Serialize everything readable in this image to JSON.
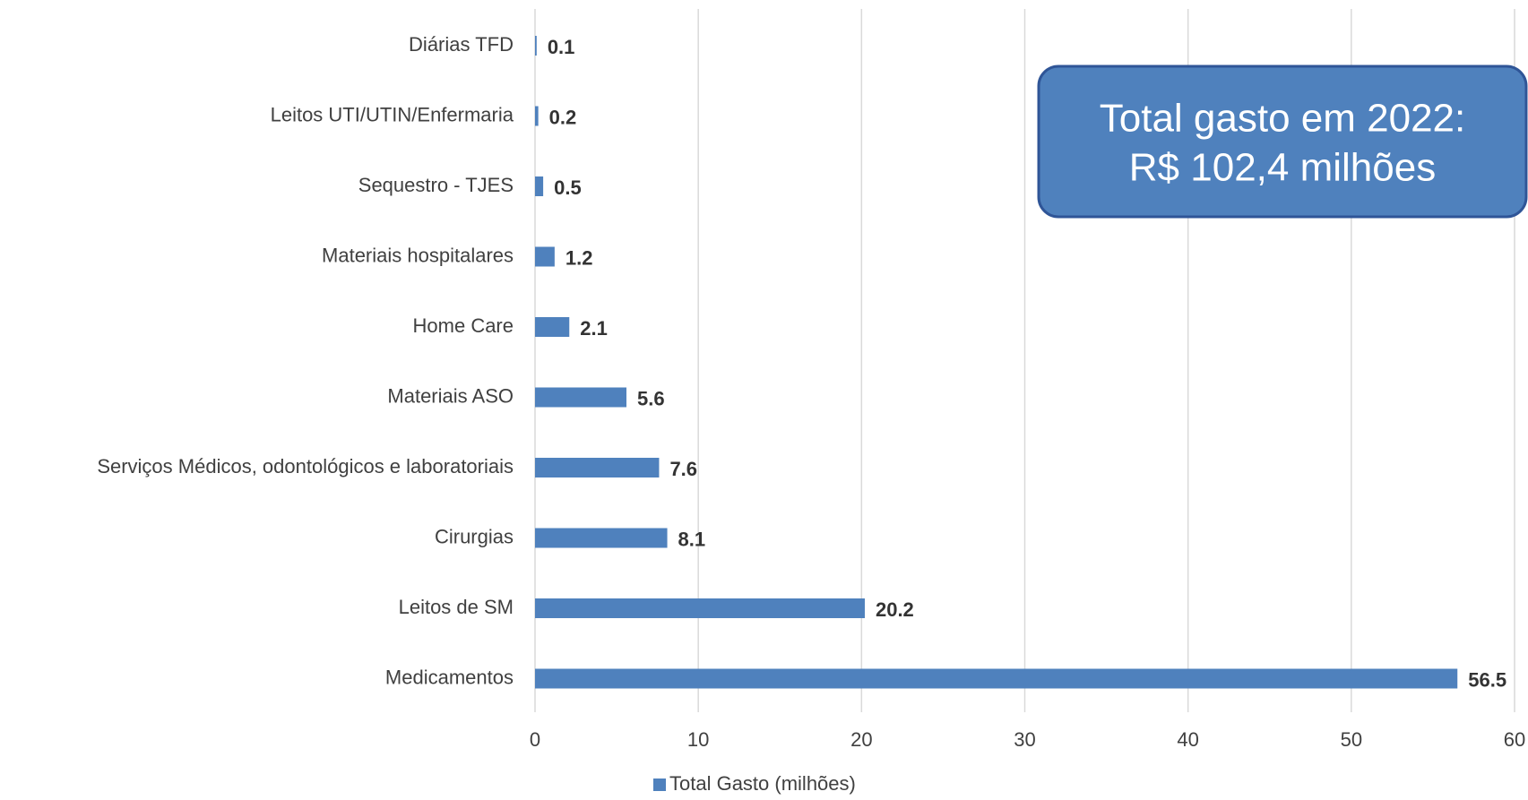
{
  "chart_data": {
    "type": "bar",
    "orientation": "horizontal",
    "categories": [
      "Diárias TFD",
      "Leitos UTI/UTIN/Enfermaria",
      "Sequestro - TJES",
      "Materiais hospitalares",
      "Home Care",
      "Materiais ASO",
      "Serviços Médicos, odontológicos e laboratoriais",
      "Cirurgias",
      "Leitos de SM",
      "Medicamentos"
    ],
    "series": [
      {
        "name": "Total Gasto (milhões)",
        "color": "#4f81bd",
        "values": [
          0.1,
          0.2,
          0.5,
          1.2,
          2.1,
          5.6,
          7.6,
          8.1,
          20.2,
          56.5
        ]
      }
    ],
    "xlim": [
      0,
      60
    ],
    "xticks": [
      0,
      10,
      20,
      30,
      40,
      50,
      60
    ],
    "grid": true,
    "legend": "bottom",
    "annotation": [
      "Total gasto em 2022:",
      "R$ 102,4 milhões"
    ]
  }
}
